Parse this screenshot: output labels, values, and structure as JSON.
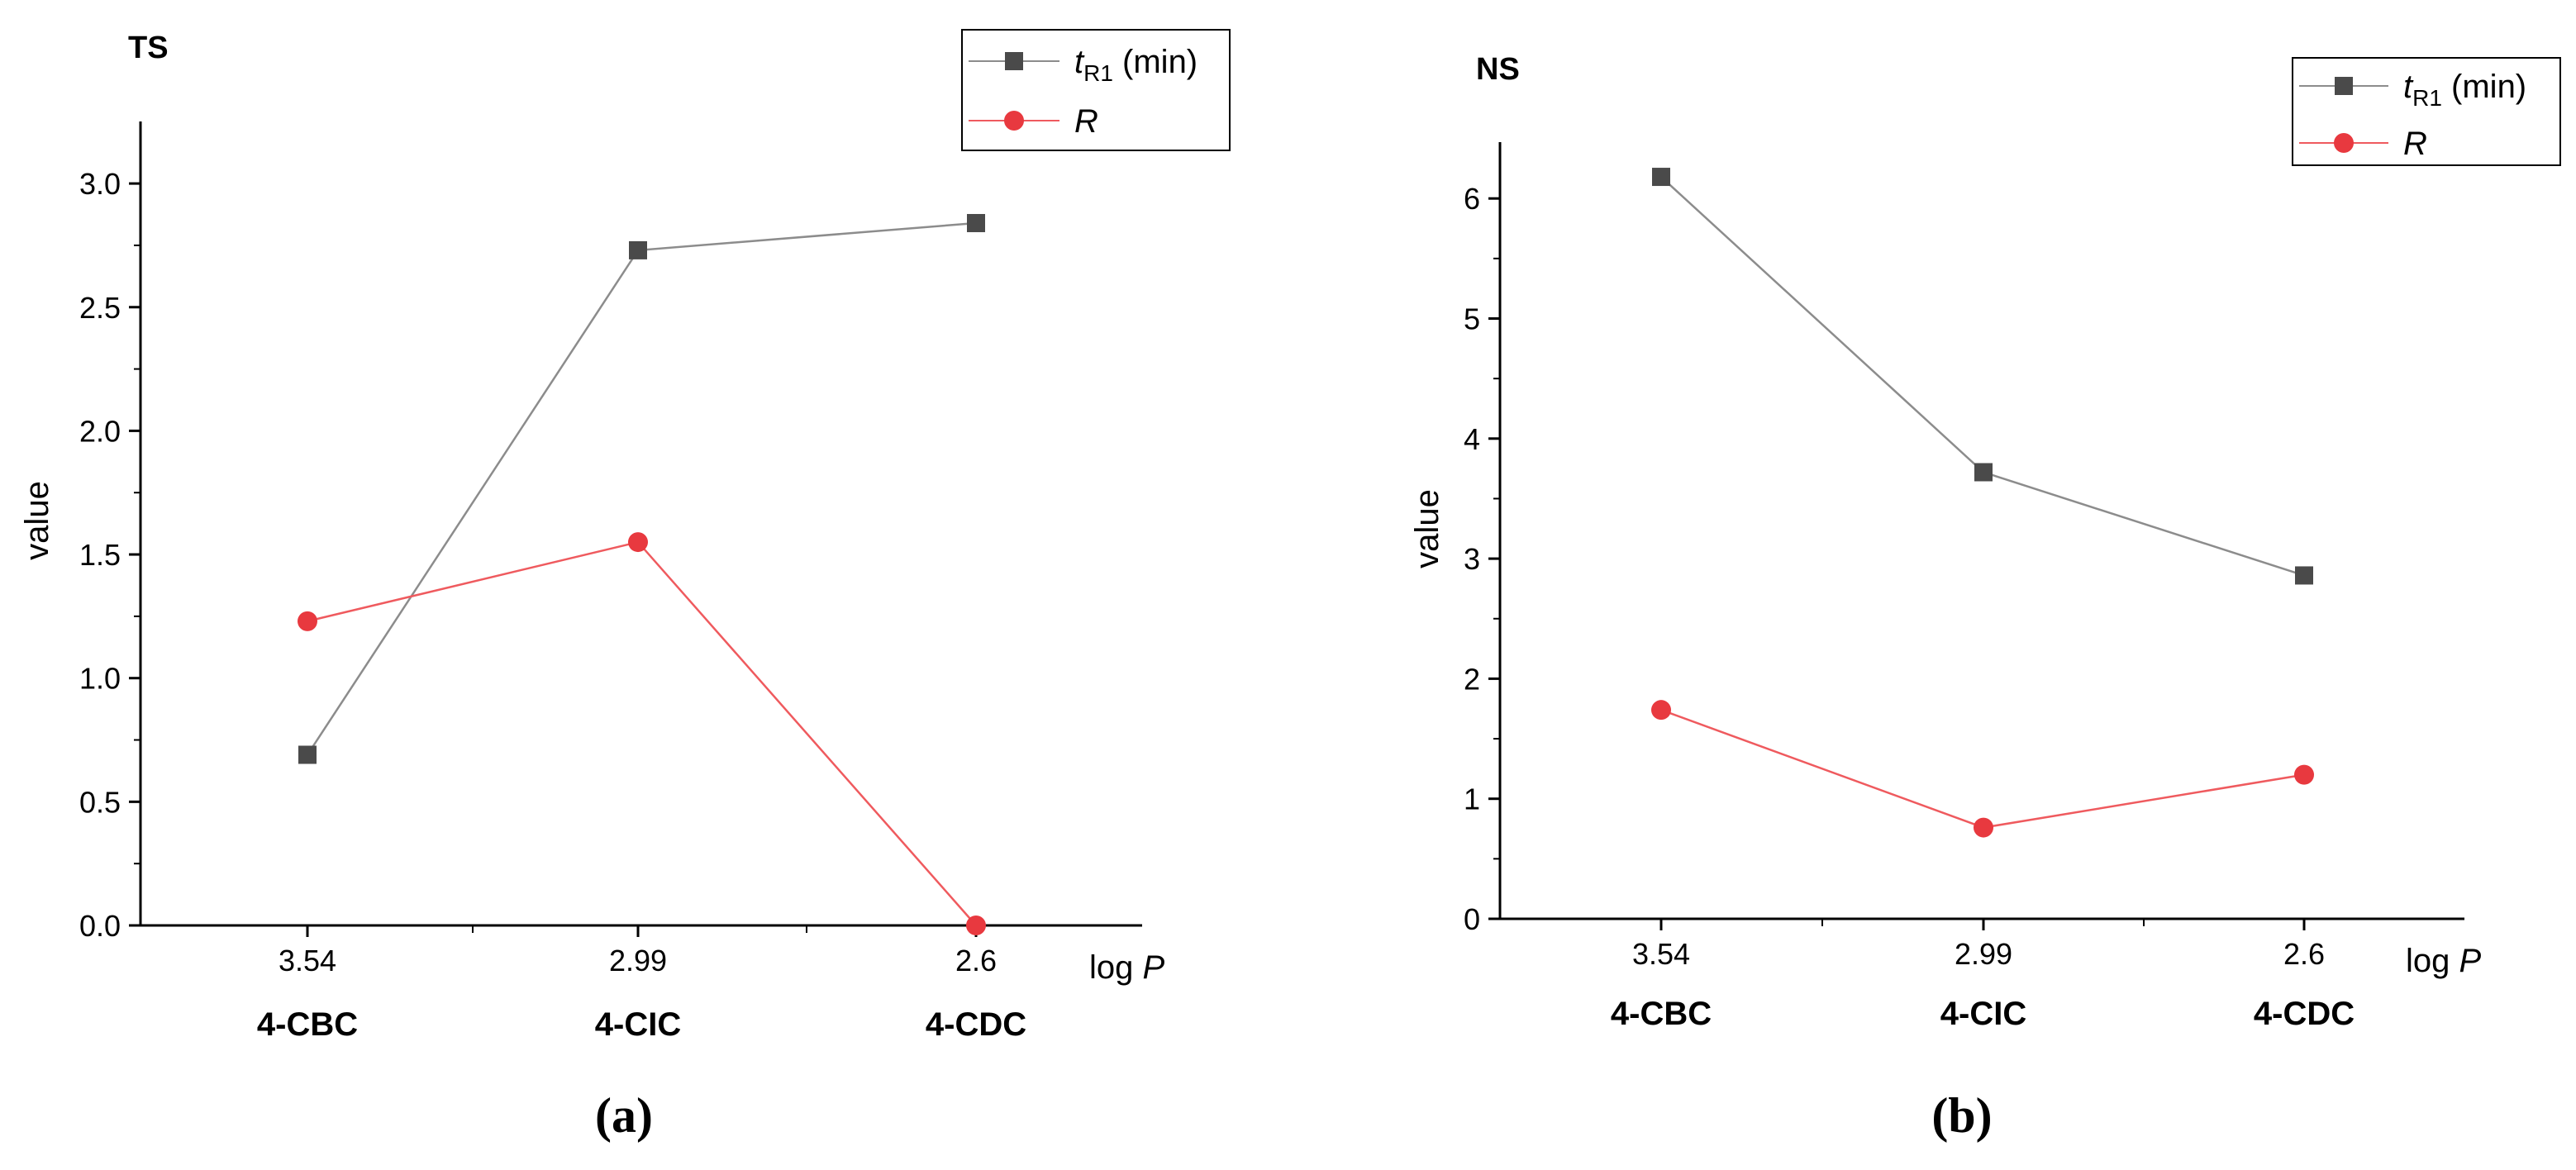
{
  "chart_data": [
    {
      "type": "line",
      "panel_id": "a",
      "title": "TS",
      "panel_label": "(a)",
      "xlabel": "log P",
      "xlabel_prefix": "log ",
      "xlabel_var": "P",
      "ylabel": "value",
      "ylim": [
        0,
        3.25
      ],
      "yticks": [
        0,
        0.5,
        1.0,
        1.5,
        2.0,
        2.5,
        3.0
      ],
      "ytick_labels": [
        "0.0",
        "0.5",
        "1.0",
        "1.5",
        "2.0",
        "2.5",
        "3.0"
      ],
      "x_tick_labels": [
        "3.54",
        "2.99",
        "2.6"
      ],
      "categories": [
        "4-CBC",
        "4-CIC",
        "4-CDC"
      ],
      "legend_position": "top-right",
      "series": [
        {
          "name": "t_R1 (min)",
          "label_main": "t",
          "label_sub": "R1",
          "label_unit": " (min)",
          "marker": "square",
          "color": "#4a4a4a",
          "line_color": "#8c8c8c",
          "values": [
            0.69,
            2.73,
            2.84
          ]
        },
        {
          "name": "R",
          "label_main": "R",
          "marker": "circle",
          "color": "#e8393f",
          "line_color": "#ef5a5e",
          "values": [
            1.23,
            1.55,
            0.0
          ]
        }
      ]
    },
    {
      "type": "line",
      "panel_id": "b",
      "title": "NS",
      "panel_label": "(b)",
      "xlabel": "log P",
      "xlabel_prefix": "log ",
      "xlabel_var": "P",
      "ylabel": "value",
      "ylim": [
        0,
        6.5
      ],
      "yticks": [
        0,
        1,
        2,
        3,
        4,
        5,
        6
      ],
      "ytick_labels": [
        "0",
        "1",
        "2",
        "3",
        "4",
        "5",
        "6"
      ],
      "x_tick_labels": [
        "3.54",
        "2.99",
        "2.6"
      ],
      "categories": [
        "4-CBC",
        "4-CIC",
        "4-CDC"
      ],
      "legend_position": "top-right",
      "series": [
        {
          "name": "t_R1 (min)",
          "label_main": "t",
          "label_sub": "R1",
          "label_unit": " (min)",
          "marker": "square",
          "color": "#4a4a4a",
          "line_color": "#8c8c8c",
          "values": [
            6.18,
            3.72,
            2.86
          ]
        },
        {
          "name": "R",
          "label_main": "R",
          "marker": "circle",
          "color": "#e8393f",
          "line_color": "#ef5a5e",
          "values": [
            1.74,
            0.76,
            1.2
          ]
        }
      ]
    }
  ]
}
